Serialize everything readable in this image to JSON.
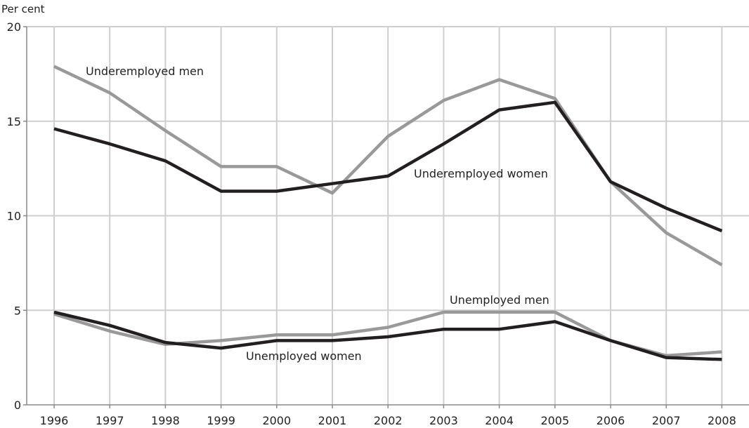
{
  "chart_data": {
    "type": "line",
    "y_unit_label": "Per cent",
    "categories": [
      "1996",
      "1997",
      "1998",
      "1999",
      "2000",
      "2001",
      "2002",
      "2003",
      "2004",
      "2005",
      "2006",
      "2007",
      "2008"
    ],
    "ylim": [
      0,
      20
    ],
    "yticks": [
      0,
      5,
      10,
      15,
      20
    ],
    "grid": "vertical and horizontal",
    "series": [
      {
        "name": "Underemployed men",
        "color": "#999999",
        "values": [
          17.9,
          16.5,
          14.5,
          12.6,
          12.6,
          11.2,
          14.2,
          16.1,
          17.2,
          16.2,
          11.8,
          9.1,
          7.4
        ]
      },
      {
        "name": "Underemployed women",
        "color": "#231f20",
        "values": [
          14.6,
          13.8,
          12.9,
          11.3,
          11.3,
          11.7,
          12.1,
          13.8,
          15.6,
          16.0,
          11.8,
          10.4,
          9.2
        ]
      },
      {
        "name": "Unemployed men",
        "color": "#999999",
        "values": [
          4.8,
          3.9,
          3.2,
          3.4,
          3.7,
          3.7,
          4.1,
          4.9,
          4.9,
          4.9,
          3.4,
          2.6,
          2.8
        ]
      },
      {
        "name": "Unemployed women",
        "color": "#231f20",
        "values": [
          4.9,
          4.2,
          3.3,
          3.0,
          3.4,
          3.4,
          3.6,
          4.0,
          4.0,
          4.4,
          3.4,
          2.5,
          2.4
        ]
      }
    ]
  }
}
